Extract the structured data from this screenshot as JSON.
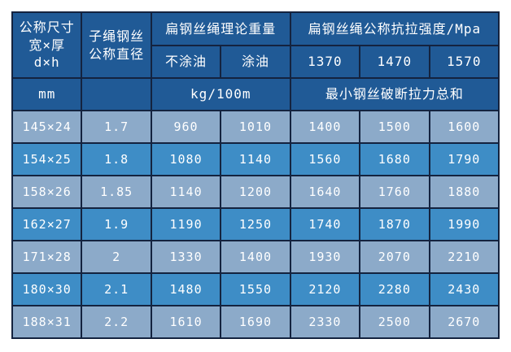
{
  "colors": {
    "page_bg": "#ffffff",
    "header_bg": "#205a96",
    "row_light_bg": "#8caac9",
    "row_dark_bg": "#3e8dc6",
    "border": "#14233f",
    "text": "#ffffff"
  },
  "chart_data": {
    "type": "table",
    "header": {
      "size_label": "公称尺寸宽×厚d×h",
      "diameter_label": "子绳钢丝公称直径",
      "weight_group_label": "扁钢丝绳理论重量",
      "uncoated_label": "不涂油",
      "coated_label": "涂油",
      "strength_group_label": "扁钢丝绳公称抗拉强度/Mpa",
      "grade_1370": "1370",
      "grade_1470": "1470",
      "grade_1570": "1570",
      "size_unit": "mm",
      "weight_unit": "kg/100m",
      "breaking_sum_label": "最小钢丝破断拉力总和"
    },
    "columns": [
      "公称尺寸宽×厚d×h (mm)",
      "子绳钢丝公称直径",
      "扁钢丝绳理论重量 不涂油 (kg/100m)",
      "扁钢丝绳理论重量 涂油 (kg/100m)",
      "最小钢丝破断拉力总和 1370 Mpa",
      "最小钢丝破断拉力总和 1470 Mpa",
      "最小钢丝破断拉力总和 1570 Mpa"
    ],
    "rows": [
      [
        "145×24",
        "1.7",
        "960",
        "1010",
        "1400",
        "1500",
        "1600"
      ],
      [
        "154×25",
        "1.8",
        "1080",
        "1140",
        "1560",
        "1680",
        "1790"
      ],
      [
        "158×26",
        "1.85",
        "1140",
        "1200",
        "1640",
        "1760",
        "1880"
      ],
      [
        "162×27",
        "1.9",
        "1190",
        "1250",
        "1740",
        "1870",
        "1990"
      ],
      [
        "171×28",
        "2",
        "1330",
        "1400",
        "1930",
        "2070",
        "2210"
      ],
      [
        "180×30",
        "2.1",
        "1480",
        "1550",
        "2120",
        "2280",
        "2430"
      ],
      [
        "188×31",
        "2.2",
        "1610",
        "1690",
        "2330",
        "2500",
        "2670"
      ]
    ]
  }
}
